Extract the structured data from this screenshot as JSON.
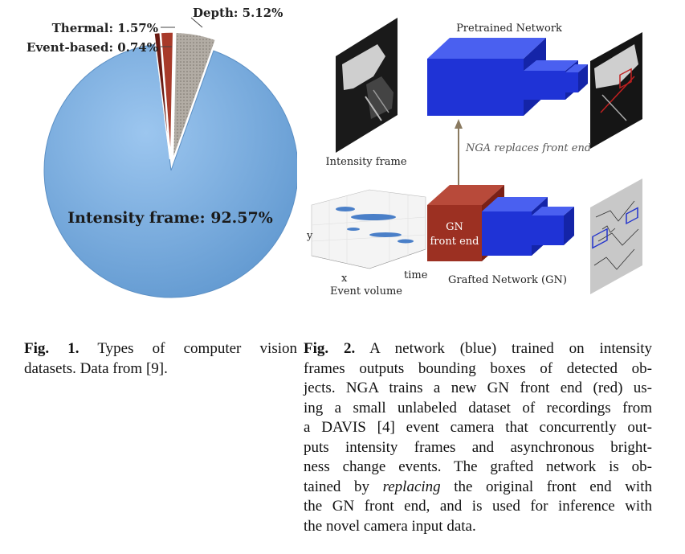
{
  "fig1": {
    "chart_data": {
      "type": "pie",
      "slices": [
        {
          "label": "Intensity frame",
          "value": 92.57,
          "display": "Intensity frame: 92.57%",
          "color": "#7aaede"
        },
        {
          "label": "Event-based",
          "value": 0.74,
          "display": "Event-based: 0.74%",
          "color": "#6b1a12"
        },
        {
          "label": "Thermal",
          "value": 1.57,
          "display": "Thermal: 1.57%",
          "color": "#a83a2a"
        },
        {
          "label": "Depth",
          "value": 5.12,
          "display": "Depth: 5.12%",
          "color": "#a9a39b"
        }
      ]
    },
    "caption": {
      "label": "Fig. 1.",
      "lines": [
        "Types of computer vision",
        "datasets. Data from [9]."
      ]
    }
  },
  "fig2": {
    "labels": {
      "pretrained": "Pretrained Network",
      "intensity_frame": "Intensity frame",
      "nga_replaces": "NGA replaces front end",
      "gn_line1": "GN",
      "gn_line2": "front end",
      "grafted": "Grafted Network (GN)",
      "event_volume": "Event volume",
      "axis_y": "y",
      "axis_x": "x",
      "axis_time": "time"
    },
    "colors": {
      "network": "#1f33d6",
      "front_end": "#9c3022"
    },
    "caption": {
      "label": "Fig. 2.",
      "lines": [
        "A network (blue) trained on intensity",
        "frames outputs bounding boxes of detected ob-",
        "jects. NGA trains a new GN front end (red) us-",
        "ing a small unlabeled dataset of recordings from",
        "a DAVIS [4] event camera that concurrently out-",
        "puts intensity frames and asynchronous bright-",
        "ness change events. The grafted network is ob-",
        "tained by replacing the original front end with",
        "the GN front end, and is used for inference with",
        "the novel camera input data."
      ]
    }
  }
}
